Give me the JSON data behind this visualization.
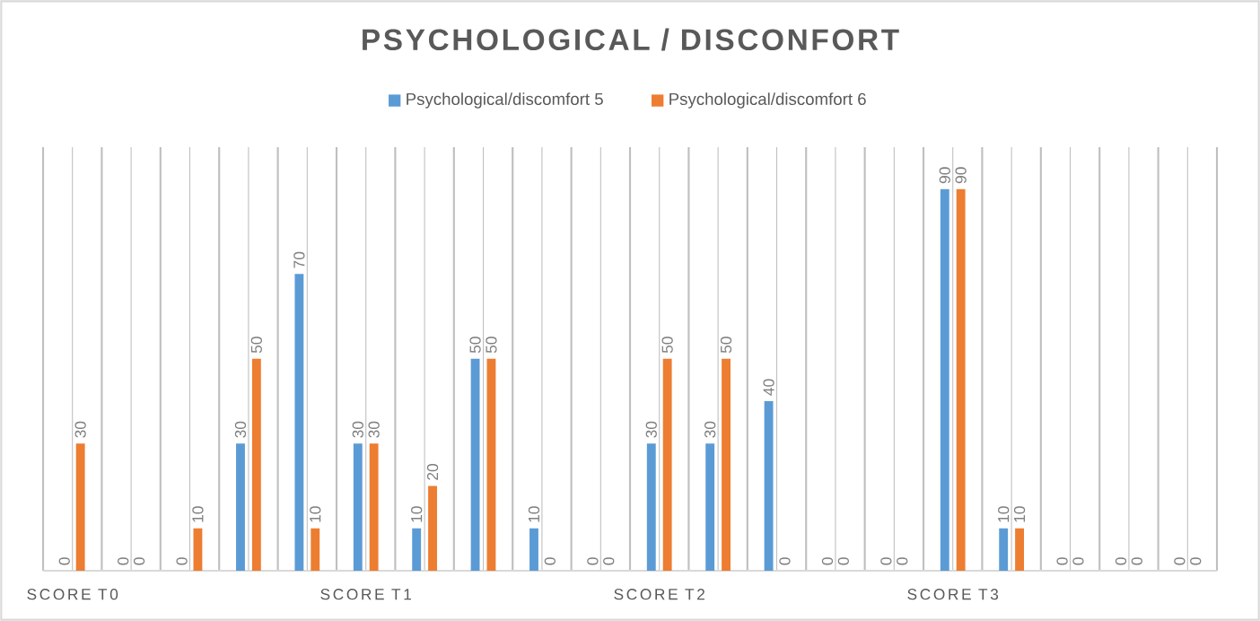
{
  "chart_data": {
    "type": "bar",
    "title": "PSYCHOLOGICAL / DISCONFORT",
    "categories": [
      "SCORE T0",
      null,
      null,
      null,
      null,
      "SCORE T1",
      null,
      null,
      null,
      null,
      "SCORE T2",
      null,
      null,
      null,
      null,
      "SCORE T3",
      null,
      null,
      null,
      null
    ],
    "series": [
      {
        "name": "Psychological/discomfort 5",
        "color": "#5b9bd5",
        "values": [
          0,
          0,
          0,
          30,
          70,
          30,
          10,
          50,
          10,
          0,
          30,
          30,
          40,
          0,
          0,
          90,
          10,
          0,
          0,
          0
        ]
      },
      {
        "name": "Psychological/discomfort 6",
        "color": "#ed7d31",
        "values": [
          30,
          0,
          10,
          50,
          10,
          30,
          20,
          50,
          0,
          0,
          50,
          50,
          0,
          0,
          0,
          90,
          10,
          0,
          0,
          0
        ]
      }
    ],
    "data_labels": true,
    "grid": "x",
    "legend": "top"
  }
}
